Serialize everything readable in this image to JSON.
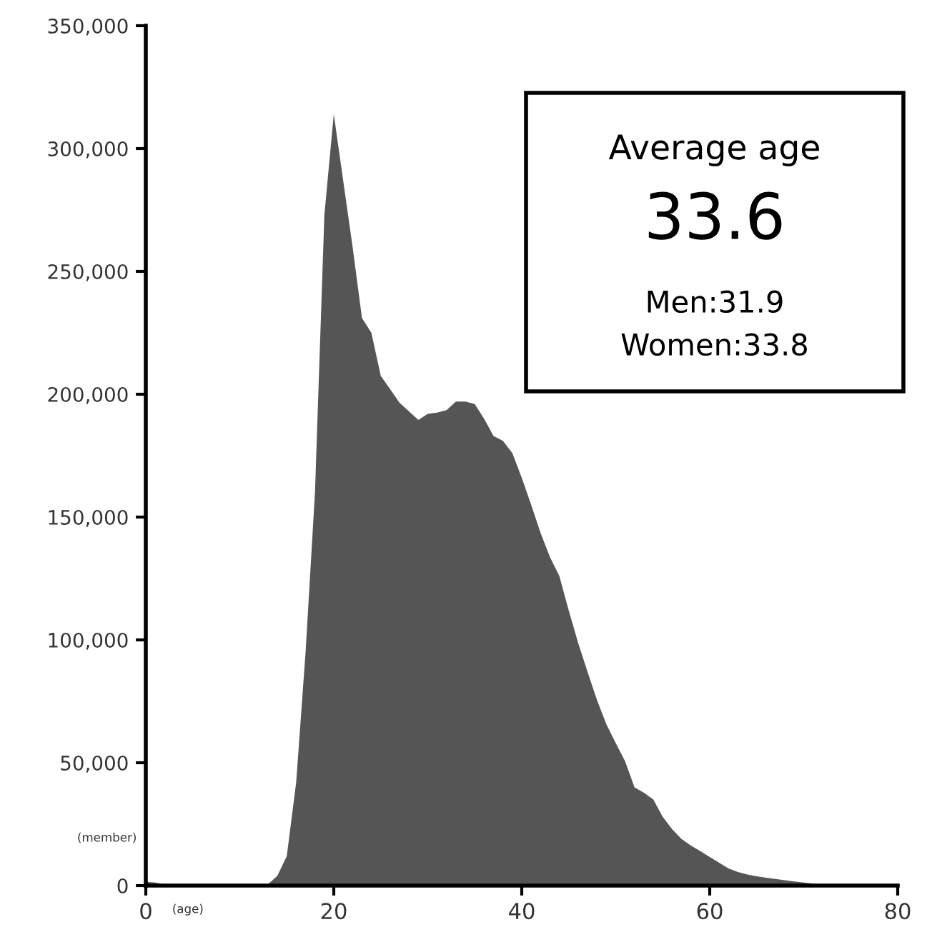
{
  "chart_data": {
    "type": "area",
    "xlabel": "(age)",
    "ylabel": "(member)",
    "x": [
      0,
      1,
      2,
      3,
      4,
      5,
      6,
      7,
      8,
      9,
      10,
      11,
      12,
      13,
      14,
      15,
      16,
      17,
      18,
      19,
      20,
      21,
      22,
      23,
      24,
      25,
      26,
      27,
      28,
      29,
      30,
      31,
      32,
      33,
      34,
      35,
      36,
      37,
      38,
      39,
      40,
      41,
      42,
      43,
      44,
      45,
      46,
      47,
      48,
      49,
      50,
      51,
      52,
      53,
      54,
      55,
      56,
      57,
      58,
      59,
      60,
      61,
      62,
      63,
      64,
      65,
      66,
      67,
      68,
      69,
      70,
      71,
      72,
      73
    ],
    "series": [
      {
        "color": "#555555",
        "values": [
          1500,
          1200,
          500,
          0,
          0,
          0,
          0,
          0,
          0,
          0,
          0,
          0,
          0,
          500,
          4000,
          12000,
          42000,
          95000,
          160000,
          273000,
          314000,
          287000,
          260000,
          231000,
          225000,
          207500,
          202000,
          196500,
          193000,
          189500,
          192000,
          192500,
          193500,
          197000,
          197000,
          196000,
          190000,
          183000,
          181000,
          176000,
          166000,
          155000,
          143600,
          133700,
          126000,
          112000,
          98800,
          87000,
          75600,
          65700,
          58000,
          50600,
          40000,
          37800,
          35000,
          28000,
          23000,
          19000,
          16300,
          14000,
          11600,
          9300,
          7000,
          5500,
          4500,
          3800,
          3200,
          2700,
          2200,
          1700,
          1200,
          800,
          300,
          0
        ]
      }
    ],
    "xlim": [
      0,
      80
    ],
    "ylim": [
      0,
      350000
    ],
    "xticks": [
      0,
      20,
      40,
      60,
      80
    ],
    "yticks": [
      0,
      {
        "value": 50000,
        "label": "50,000"
      },
      {
        "value": 100000,
        "label": "100,000"
      },
      {
        "value": 150000,
        "label": "150,000"
      },
      {
        "value": 200000,
        "label": "200,000"
      },
      {
        "value": 250000,
        "label": "250,000"
      },
      {
        "value": 300000,
        "label": "300,000"
      },
      {
        "value": 350000,
        "label": "350,000"
      }
    ],
    "grid": false,
    "annotations": [
      "Average age",
      "33.6",
      "Men:31.9",
      "Women:33.8"
    ]
  }
}
